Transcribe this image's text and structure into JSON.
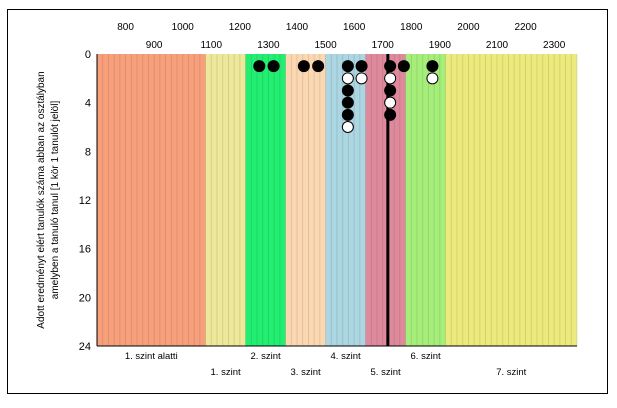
{
  "chart_data": {
    "type": "scatter",
    "x_axis": {
      "range": [
        700,
        2380
      ],
      "ticks_top_row1": [
        800,
        1000,
        1200,
        1400,
        1600,
        1800,
        2000,
        2200
      ],
      "ticks_top_row2": [
        900,
        1100,
        1300,
        1500,
        1700,
        1900,
        2100,
        2300
      ]
    },
    "y_axis": {
      "label_line1": "Adott eredményt elért tanulók száma abban az osztályban",
      "label_line2": "amelyben a tanuló tanul [1 kör 1 tanulót jelöl]",
      "ylim": [
        0,
        24
      ],
      "ticks": [
        0,
        4,
        8,
        12,
        16,
        20,
        24
      ],
      "inverted": true
    },
    "bands": [
      {
        "from": 700,
        "to": 1080,
        "color": "#f8a07c",
        "label": "1. szint alatti",
        "label_row": 1
      },
      {
        "from": 1080,
        "to": 1220,
        "color": "#ede89a",
        "label": "1. szint",
        "label_row": 2
      },
      {
        "from": 1220,
        "to": 1360,
        "color": "#22ee72",
        "label": "2. szint",
        "label_row": 1
      },
      {
        "from": 1360,
        "to": 1500,
        "color": "#fbd8b2",
        "label": "3. szint",
        "label_row": 2
      },
      {
        "from": 1500,
        "to": 1640,
        "color": "#acd6e2",
        "label": "4. szint",
        "label_row": 1
      },
      {
        "from": 1640,
        "to": 1780,
        "color": "#df8a9c",
        "label": "5. szint",
        "label_row": 2
      },
      {
        "from": 1780,
        "to": 1920,
        "color": "#a6ee7a",
        "label": "6. szint",
        "label_row": 1
      },
      {
        "from": 1920,
        "to": 2380,
        "color": "#ecea7c",
        "label": "7. szint",
        "label_row": 2
      }
    ],
    "vertical_line_x": 1718,
    "series": [
      {
        "style": "filled",
        "color": "#000000",
        "points": [
          [
            1268,
            1
          ],
          [
            1318,
            1
          ],
          [
            1424,
            1
          ],
          [
            1474,
            1
          ],
          [
            1578,
            1
          ],
          [
            1578,
            3
          ],
          [
            1578,
            4
          ],
          [
            1578,
            5
          ],
          [
            1626,
            1
          ],
          [
            1726,
            1
          ],
          [
            1726,
            3
          ],
          [
            1726,
            5
          ],
          [
            1774,
            1
          ],
          [
            1874,
            1
          ]
        ]
      },
      {
        "style": "open",
        "color": "#000000",
        "points": [
          [
            1578,
            2
          ],
          [
            1578,
            6
          ],
          [
            1626,
            2
          ],
          [
            1726,
            2
          ],
          [
            1726,
            4
          ],
          [
            1874,
            2
          ]
        ]
      }
    ],
    "grid": {
      "x_minor_step": 20,
      "horizontal": false
    }
  }
}
